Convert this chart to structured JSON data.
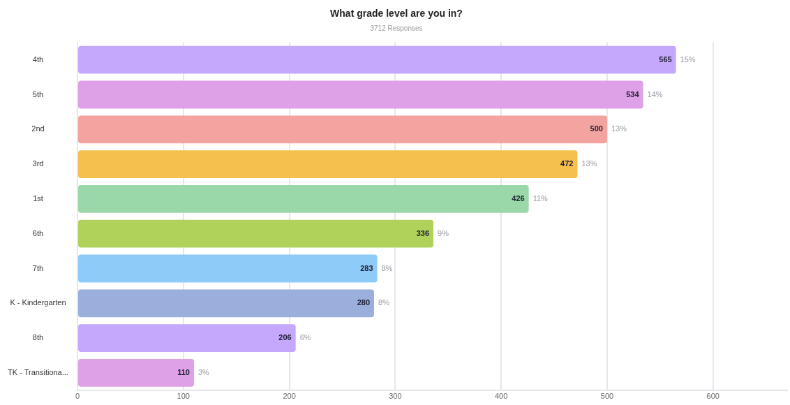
{
  "chart_data": {
    "type": "bar",
    "orientation": "horizontal",
    "title": "What grade level are you in?",
    "subtitle": "3712 Responses",
    "categories": [
      "4th",
      "5th",
      "2nd",
      "3rd",
      "1st",
      "6th",
      "7th",
      "K - Kindergarten",
      "8th",
      "TK - Transitiona..."
    ],
    "values": [
      565,
      534,
      500,
      472,
      426,
      336,
      283,
      280,
      206,
      110
    ],
    "colors": [
      "#c5a8fc",
      "#dea0e6",
      "#f4a4a0",
      "#f6c04e",
      "#9ad8aa",
      "#b0d25a",
      "#8ecbf8",
      "#9aafdc",
      "#c5a8fc",
      "#dea0e6"
    ],
    "data_labels": true,
    "annotations": [
      {
        "text": "15%",
        "x": 565,
        "y": "4th"
      },
      {
        "text": "14%",
        "x": 534,
        "y": "5th"
      },
      {
        "text": "13%",
        "x": 500,
        "y": "2nd"
      },
      {
        "text": "13%",
        "x": 472,
        "y": "3rd"
      },
      {
        "text": "11%",
        "x": 426,
        "y": "1st"
      },
      {
        "text": "9%",
        "x": 336,
        "y": "6th"
      },
      {
        "text": "8%",
        "x": 283,
        "y": "7th"
      },
      {
        "text": "8%",
        "x": 280,
        "y": "K - Kindergarten"
      },
      {
        "text": "6%",
        "x": 206,
        "y": "8th"
      },
      {
        "text": "3%",
        "x": 110,
        "y": "TK - Transitiona..."
      }
    ],
    "xlim": [
      0,
      670
    ],
    "xticks": [
      0,
      100,
      200,
      300,
      400,
      500,
      600
    ],
    "grid": "x",
    "legend": false
  }
}
